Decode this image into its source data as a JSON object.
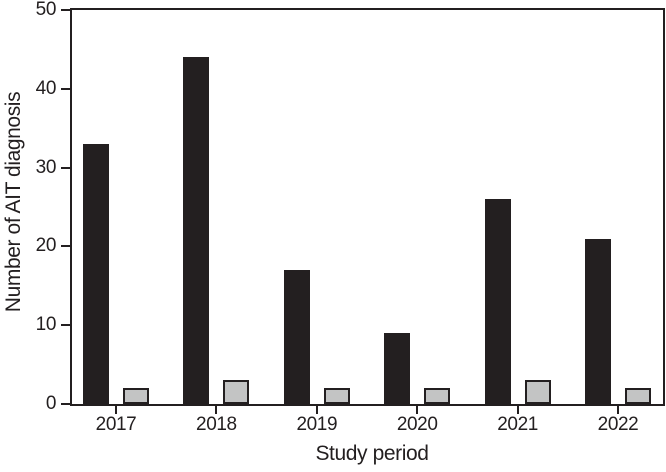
{
  "chart_data": {
    "type": "bar",
    "title": "",
    "categories": [
      "2017",
      "2018",
      "2019",
      "2020",
      "2021",
      "2022"
    ],
    "series": [
      {
        "name": "black-bars",
        "color": "#231f20",
        "border_color": "#231f20",
        "values": [
          33,
          44,
          17,
          9,
          26,
          21
        ]
      },
      {
        "name": "gray-bars",
        "color": "#c3c4c4",
        "border_color": "#231f20",
        "values": [
          2,
          3,
          2,
          2,
          3,
          2
        ]
      }
    ],
    "xlabel": "Study period",
    "ylabel": "Number of AIT diagnosis",
    "ylim": [
      0,
      50
    ],
    "yticks": [
      0,
      10,
      20,
      30,
      40,
      50
    ],
    "grid": false,
    "legend": "none",
    "axis_color": "#231f20",
    "plot_background": "#ffffff"
  }
}
